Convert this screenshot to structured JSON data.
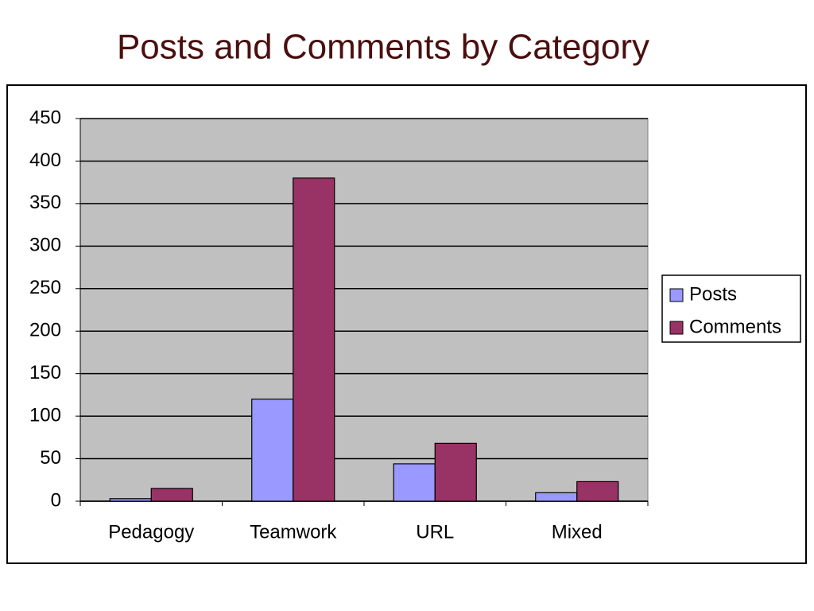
{
  "chart_data": {
    "type": "bar",
    "title": "Posts and Comments by Category",
    "categories": [
      "Pedagogy",
      "Teamwork",
      "URL",
      "Mixed"
    ],
    "series": [
      {
        "name": "Posts",
        "color": "#9999ff",
        "values": [
          3,
          120,
          44,
          10
        ]
      },
      {
        "name": "Comments",
        "color": "#993366",
        "values": [
          15,
          380,
          68,
          23
        ]
      }
    ],
    "ylim": [
      0,
      450
    ],
    "yticks": [
      0,
      50,
      100,
      150,
      200,
      250,
      300,
      350,
      400,
      450
    ],
    "grid": true,
    "legend": "right"
  }
}
